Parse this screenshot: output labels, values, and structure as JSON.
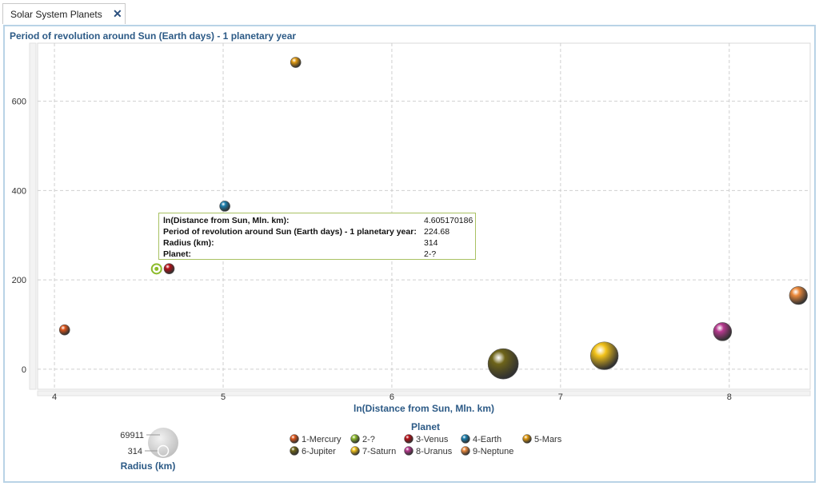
{
  "tab": {
    "label": "Solar System Planets"
  },
  "chart_data": {
    "type": "scatter",
    "title": "Period of revolution around Sun (Earth days) - 1 planetary year",
    "xlabel": "ln(Distance from Sun, Mln. km)",
    "ylabel": "",
    "xlim": [
      3.9,
      8.48
    ],
    "ylim": [
      -45,
      730
    ],
    "xticks": [
      "4",
      "5",
      "6",
      "7",
      "8"
    ],
    "yticks": [
      "0",
      "200",
      "400",
      "600"
    ],
    "grid": true,
    "points": [
      {
        "planet": "1-Mercury",
        "x": 4.06,
        "y": 88,
        "radius": 2440,
        "color": "#e0561b"
      },
      {
        "planet": "2-?",
        "x": 4.605170186,
        "y": 224.68,
        "radius": 314,
        "color": "#8dbb2c"
      },
      {
        "planet": "3-Venus",
        "x": 4.68,
        "y": 225,
        "radius": 6052,
        "color": "#b80f16"
      },
      {
        "planet": "4-Earth",
        "x": 5.01,
        "y": 365,
        "radius": 6371,
        "color": "#1a7fae"
      },
      {
        "planet": "5-Mars",
        "x": 5.43,
        "y": 687,
        "radius": 3390,
        "color": "#e39b10"
      },
      {
        "planet": "6-Jupiter",
        "x": 6.66,
        "y": 12,
        "radius": 69911,
        "color": "#6e6419"
      },
      {
        "planet": "7-Saturn",
        "x": 7.26,
        "y": 30,
        "radius": 58232,
        "color": "#f2c21a"
      },
      {
        "planet": "8-Uranus",
        "x": 7.96,
        "y": 84,
        "radius": 25362,
        "color": "#b7398f"
      },
      {
        "planet": "9-Neptune",
        "x": 8.41,
        "y": 165,
        "radius": 24622,
        "color": "#ec8a3c"
      }
    ],
    "legend": {
      "title": "Planet",
      "placement": "bottom",
      "entries": [
        "1-Mercury",
        "2-?",
        "3-Venus",
        "4-Earth",
        "5-Mars",
        "6-Jupiter",
        "7-Saturn",
        "8-Uranus",
        "9-Neptune"
      ]
    },
    "size_legend": {
      "title": "Radius (km)",
      "max_label": "69911",
      "min_label": "314"
    }
  },
  "tooltip": {
    "rows": [
      {
        "key": "ln(Distance from Sun, Mln. km):",
        "value": "4.605170186"
      },
      {
        "key": "Period of revolution around Sun (Earth days) - 1 planetary year:",
        "value": "224.68"
      },
      {
        "key": "Radius (km):",
        "value": "314"
      },
      {
        "key": "Planet:",
        "value": "2-?"
      }
    ]
  }
}
